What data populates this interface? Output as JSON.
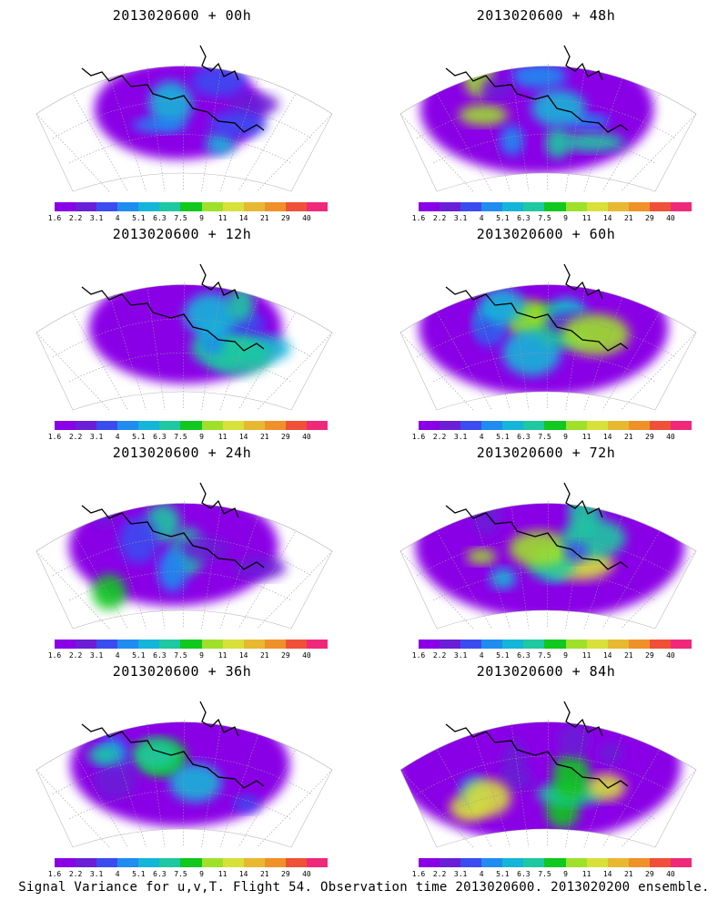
{
  "panels": [
    {
      "title": "2013020600 + 00h",
      "intensity": 0.3
    },
    {
      "title": "2013020600 + 48h",
      "intensity": 0.62
    },
    {
      "title": "2013020600 + 12h",
      "intensity": 0.42
    },
    {
      "title": "2013020600 + 60h",
      "intensity": 0.7
    },
    {
      "title": "2013020600 + 24h",
      "intensity": 0.5
    },
    {
      "title": "2013020600 + 72h",
      "intensity": 0.8
    },
    {
      "title": "2013020600 + 36h",
      "intensity": 0.55
    },
    {
      "title": "2013020600 + 84h",
      "intensity": 0.88
    }
  ],
  "colorbar": {
    "labels": [
      "1.6",
      "2.2",
      "3.1",
      "4",
      "5.1",
      "6.3",
      "7.5",
      "9",
      "11",
      "14",
      "21",
      "29",
      "40"
    ],
    "colors": [
      "#8a00e6",
      "#6a1fd6",
      "#3a4cf0",
      "#1f8cf0",
      "#13b5d8",
      "#1ec8a0",
      "#10c81e",
      "#9ee02a",
      "#d8e03a",
      "#e8b830",
      "#f09028",
      "#f05038",
      "#f0287a"
    ]
  },
  "footer": "Signal Variance for u,v,T. Flight 54. Observation time 2013020600. 2013020200 ensemble."
}
